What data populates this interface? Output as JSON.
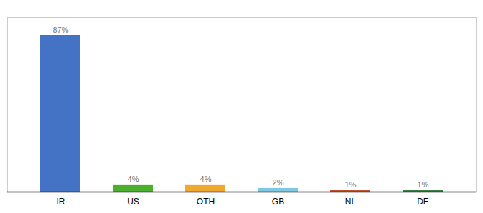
{
  "chart_data": {
    "type": "bar",
    "categories": [
      "IR",
      "US",
      "OTH",
      "GB",
      "NL",
      "DE"
    ],
    "values": [
      87,
      4,
      4,
      2,
      1,
      1
    ],
    "value_labels": [
      "87%",
      "4%",
      "4%",
      "2%",
      "1%",
      "1%"
    ],
    "colors": [
      "#4472c4",
      "#4daf2e",
      "#f0a830",
      "#7ec8e3",
      "#c0502b",
      "#3a7d44"
    ],
    "ylim": [
      0,
      97
    ],
    "data_labels": true,
    "tick_labels": "x"
  }
}
